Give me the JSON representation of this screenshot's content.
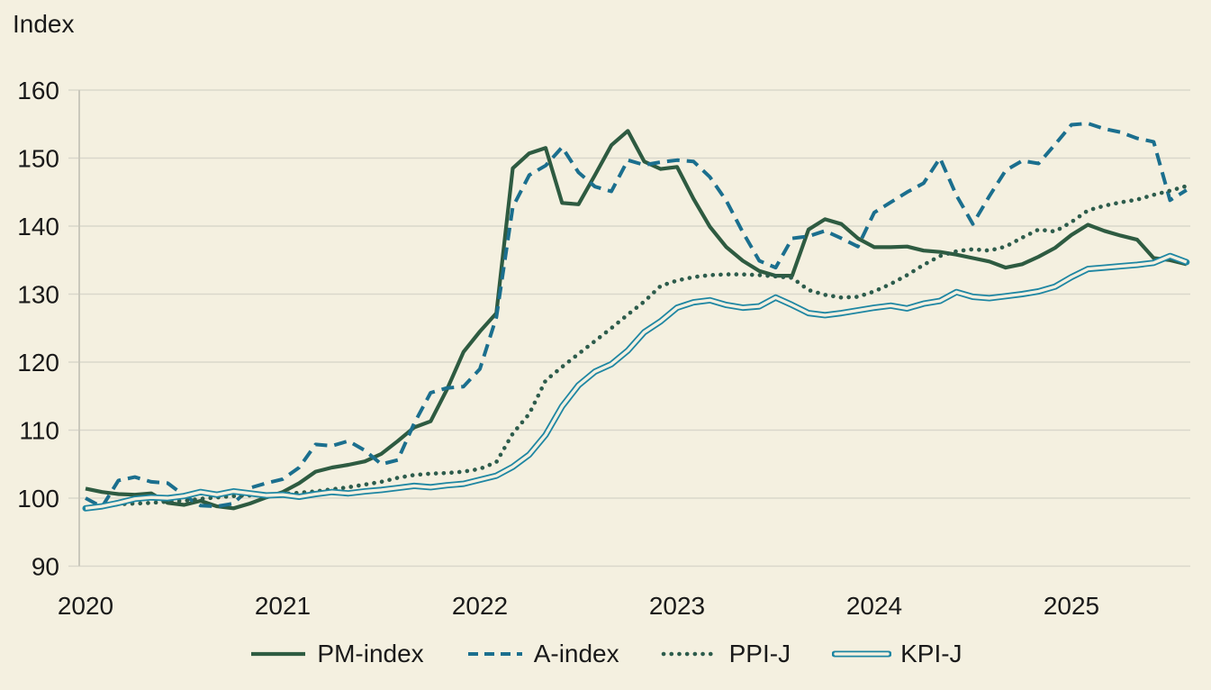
{
  "page": {
    "background_color": "#f4f0e0",
    "gridline_color": "#d9d7cb",
    "axis_line_color": "#cac8bc",
    "text_color": "#1a1a1a"
  },
  "chart_data": {
    "type": "line",
    "ylabel": "Index",
    "xlabel": "",
    "ylim": [
      90,
      160
    ],
    "yticks": [
      90,
      100,
      110,
      120,
      130,
      140,
      150,
      160
    ],
    "x_tick_labels": [
      "2020",
      "2021",
      "2022",
      "2023",
      "2024",
      "2025"
    ],
    "x_frequency": "monthly",
    "x_range": "Jan 2020 - Aug 2025",
    "grid": "horizontal",
    "legend_position": "bottom",
    "series": [
      {
        "name": "PM-index",
        "style": "solid",
        "color": "#2e5b41",
        "values": [
          101.4,
          100.9,
          100.6,
          100.5,
          100.7,
          99.3,
          99.0,
          99.6,
          98.8,
          98.5,
          99.2,
          100.1,
          100.9,
          102.2,
          103.9,
          104.5,
          104.9,
          105.4,
          106.5,
          108.4,
          110.4,
          111.3,
          116.0,
          121.5,
          124.5,
          127.2,
          148.5,
          150.7,
          151.5,
          143.4,
          143.2,
          147.5,
          151.9,
          154.0,
          149.5,
          148.4,
          148.7,
          144.0,
          139.9,
          136.9,
          134.9,
          133.4,
          132.7,
          132.7,
          139.5,
          141.0,
          140.3,
          138.2,
          136.9,
          136.9,
          137.0,
          136.4,
          136.2,
          135.8,
          135.3,
          134.8,
          133.9,
          134.4,
          135.5,
          136.8,
          138.7,
          140.2,
          139.3,
          138.6,
          138.0,
          135.3,
          135.0,
          134.4
        ]
      },
      {
        "name": "A-index",
        "style": "dashed",
        "color": "#1b6f8e",
        "values": [
          100.0,
          98.7,
          102.6,
          103.1,
          102.4,
          102.2,
          100.4,
          98.9,
          98.8,
          99.2,
          101.5,
          102.2,
          102.8,
          104.5,
          107.9,
          107.7,
          108.4,
          107.0,
          105.0,
          105.6,
          111.0,
          115.5,
          116.2,
          116.4,
          119.0,
          126.6,
          142.8,
          147.5,
          148.9,
          151.6,
          147.9,
          145.8,
          145.1,
          149.7,
          149.0,
          149.4,
          149.7,
          149.5,
          147.2,
          143.7,
          139.1,
          134.9,
          133.9,
          138.2,
          138.5,
          139.3,
          138.2,
          137.0,
          142.0,
          143.5,
          145.0,
          146.3,
          150.0,
          144.5,
          140.3,
          144.4,
          148.2,
          149.6,
          149.2,
          152.0,
          154.9,
          155.1,
          154.3,
          153.8,
          152.9,
          152.4,
          143.8,
          145.3
        ]
      },
      {
        "name": "PPI-J",
        "style": "dotted",
        "color": "#2d5c4c",
        "values": [
          98.6,
          98.9,
          99.1,
          99.2,
          99.3,
          99.5,
          99.6,
          99.9,
          100.1,
          100.3,
          100.4,
          100.5,
          100.6,
          100.8,
          101.0,
          101.3,
          101.6,
          102.0,
          102.4,
          103.0,
          103.4,
          103.6,
          103.7,
          103.9,
          104.3,
          105.3,
          109.5,
          112.4,
          117.3,
          119.3,
          121.2,
          123.1,
          125.0,
          127.0,
          128.9,
          131.2,
          132.0,
          132.5,
          132.8,
          132.9,
          132.9,
          132.8,
          132.6,
          132.4,
          130.6,
          129.9,
          129.5,
          129.6,
          130.4,
          131.5,
          132.8,
          134.3,
          135.6,
          136.3,
          136.6,
          136.4,
          137.0,
          138.3,
          139.5,
          139.2,
          140.6,
          142.3,
          143.0,
          143.5,
          143.9,
          144.6,
          145.2,
          145.9
        ]
      },
      {
        "name": "KPI-J",
        "style": "double",
        "color": "#1e86a2",
        "values": [
          98.5,
          98.8,
          99.3,
          99.9,
          100.1,
          100.0,
          100.3,
          100.9,
          100.5,
          101.0,
          100.7,
          100.4,
          100.5,
          100.2,
          100.6,
          100.9,
          100.7,
          101.0,
          101.2,
          101.5,
          101.8,
          101.6,
          101.9,
          102.1,
          102.7,
          103.3,
          104.6,
          106.4,
          109.3,
          113.5,
          116.6,
          118.6,
          119.7,
          121.7,
          124.4,
          126.0,
          128.0,
          128.8,
          129.1,
          128.4,
          128.0,
          128.2,
          129.5,
          128.4,
          127.2,
          126.9,
          127.2,
          127.6,
          128.0,
          128.3,
          127.9,
          128.6,
          129.0,
          130.3,
          129.6,
          129.4,
          129.7,
          130.0,
          130.4,
          131.1,
          132.5,
          133.7,
          133.9,
          134.1,
          134.3,
          134.6,
          135.6,
          134.7
        ]
      }
    ]
  }
}
